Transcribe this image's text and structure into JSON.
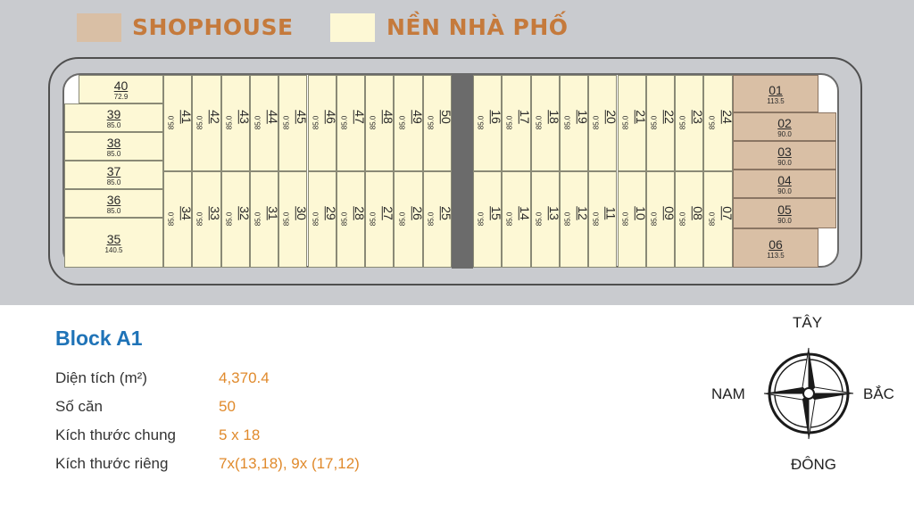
{
  "legend": {
    "shophouse_label": "SHOPHOUSE",
    "shophouse_color": "#d9bfa5",
    "nenpho_label": "NỀN NHÀ PHỐ",
    "nenpho_color": "#fdf8d5"
  },
  "plots": {
    "left_column": [
      {
        "id": "40",
        "area": "72.9"
      },
      {
        "id": "39",
        "area": "85.0"
      },
      {
        "id": "38",
        "area": "85.0"
      },
      {
        "id": "37",
        "area": "85.0"
      },
      {
        "id": "36",
        "area": "85.0"
      },
      {
        "id": "35",
        "area": "140.5"
      }
    ],
    "top_row_left": [
      {
        "id": "41",
        "area": "85.0"
      },
      {
        "id": "42",
        "area": "85.0"
      },
      {
        "id": "43",
        "area": "85.0"
      },
      {
        "id": "44",
        "area": "85.0"
      },
      {
        "id": "45",
        "area": "85.0"
      },
      {
        "id": "46",
        "area": "85.0"
      },
      {
        "id": "47",
        "area": "85.0"
      },
      {
        "id": "48",
        "area": "85.0"
      },
      {
        "id": "49",
        "area": "85.0"
      },
      {
        "id": "50",
        "area": "85.0"
      }
    ],
    "bottom_row_left": [
      {
        "id": "34",
        "area": "85.0"
      },
      {
        "id": "33",
        "area": "85.0"
      },
      {
        "id": "32",
        "area": "85.0"
      },
      {
        "id": "31",
        "area": "85.0"
      },
      {
        "id": "30",
        "area": "85.0"
      },
      {
        "id": "29",
        "area": "85.0"
      },
      {
        "id": "28",
        "area": "85.0"
      },
      {
        "id": "27",
        "area": "85.0"
      },
      {
        "id": "26",
        "area": "85.0"
      },
      {
        "id": "25",
        "area": "85.0"
      }
    ],
    "top_row_right": [
      {
        "id": "16",
        "area": "85.0"
      },
      {
        "id": "17",
        "area": "85.0"
      },
      {
        "id": "18",
        "area": "85.0"
      },
      {
        "id": "19",
        "area": "85.0"
      },
      {
        "id": "20",
        "area": "85.0"
      },
      {
        "id": "21",
        "area": "85.0"
      },
      {
        "id": "22",
        "area": "85.0"
      },
      {
        "id": "23",
        "area": "85.0"
      },
      {
        "id": "24",
        "area": "85.0"
      }
    ],
    "bottom_row_right": [
      {
        "id": "15",
        "area": "85.0"
      },
      {
        "id": "14",
        "area": "85.0"
      },
      {
        "id": "13",
        "area": "85.0"
      },
      {
        "id": "12",
        "area": "85.0"
      },
      {
        "id": "11",
        "area": "85.0"
      },
      {
        "id": "10",
        "area": "85.0"
      },
      {
        "id": "09",
        "area": "85.0"
      },
      {
        "id": "08",
        "area": "85.0"
      },
      {
        "id": "07",
        "area": "85.0"
      }
    ],
    "shophouse_column": [
      {
        "id": "01",
        "area": "113.5"
      },
      {
        "id": "02",
        "area": "90.0"
      },
      {
        "id": "03",
        "area": "90.0"
      },
      {
        "id": "04",
        "area": "90.0"
      },
      {
        "id": "05",
        "area": "90.0"
      },
      {
        "id": "06",
        "area": "113.5"
      }
    ]
  },
  "block": {
    "title": "Block A1",
    "rows": [
      {
        "label": "Diện tích (m²)",
        "value": "4,370.4"
      },
      {
        "label": "Số căn",
        "value": "50"
      },
      {
        "label": "Kích thước chung",
        "value": "5 x 18"
      },
      {
        "label": "Kích thước riêng",
        "value": "7x(13,18), 9x (17,12)"
      }
    ],
    "label_color": "#333333",
    "value_color": "#e08a2c",
    "title_color": "#1f73b7"
  },
  "compass": {
    "top": "TÂY",
    "left": "NAM",
    "right": "BẮC",
    "bottom": "ĐÔNG",
    "icon": "compass-rose-icon"
  }
}
